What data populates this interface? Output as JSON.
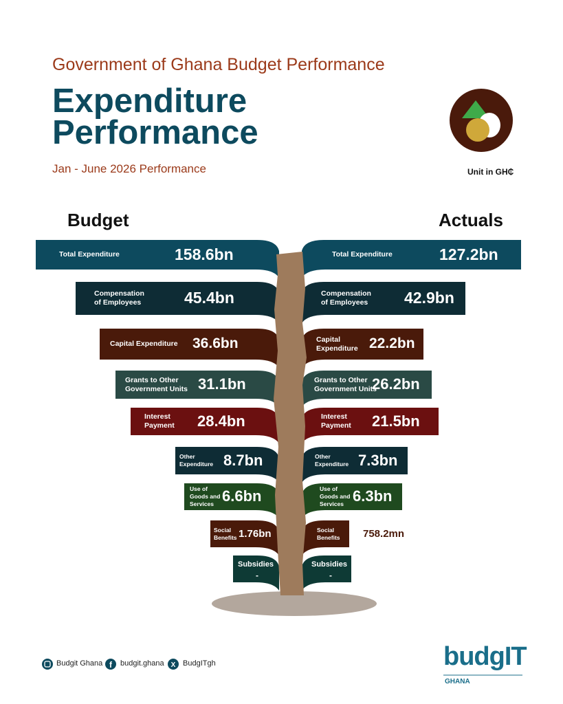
{
  "header": {
    "supertitle": "Government of Ghana Budget Performance",
    "title_lines": [
      "Expenditure",
      "Performance"
    ],
    "period": "Jan - June 2026 Performance",
    "unit": "Unit in GH₵"
  },
  "columns": {
    "left": "Budget",
    "right": "Actuals"
  },
  "rows": [
    {
      "budget": {
        "label": [
          "Total Expenditure"
        ],
        "value": "158.6bn"
      },
      "actual": {
        "label": [
          "Total Expenditure"
        ],
        "value": "127.2bn"
      }
    },
    {
      "budget": {
        "label": [
          "Compensation",
          "of Employees"
        ],
        "value": "45.4bn"
      },
      "actual": {
        "label": [
          "Compensation",
          "of Employees"
        ],
        "value": "42.9bn"
      }
    },
    {
      "budget": {
        "label": [
          "Capital Expenditure"
        ],
        "value": "36.6bn"
      },
      "actual": {
        "label": [
          "Capital",
          "Expenditure"
        ],
        "value": "22.2bn"
      }
    },
    {
      "budget": {
        "label": [
          "Grants to Other",
          "Government Units"
        ],
        "value": "31.1bn"
      },
      "actual": {
        "label": [
          "Grants to Other",
          "Government Units"
        ],
        "value": "26.2bn"
      }
    },
    {
      "budget": {
        "label": [
          "Interest",
          "Payment"
        ],
        "value": "28.4bn"
      },
      "actual": {
        "label": [
          "Interest",
          "Payment"
        ],
        "value": "21.5bn"
      }
    },
    {
      "budget": {
        "label": [
          "Other",
          "Expenditure"
        ],
        "value": "8.7bn"
      },
      "actual": {
        "label": [
          "Other",
          "Expenditure"
        ],
        "value": "7.3bn"
      }
    },
    {
      "budget": {
        "label": [
          "Use of",
          "Goods and",
          "Services"
        ],
        "value": "6.6bn"
      },
      "actual": {
        "label": [
          "Use of",
          "Goods and",
          "Services"
        ],
        "value": "6.3bn"
      }
    },
    {
      "budget": {
        "label": [
          "Social",
          "Benefits"
        ],
        "value": "1.76bn"
      },
      "actual": {
        "label": [
          "Social",
          "Benefits"
        ],
        "value": "758.2mn"
      }
    },
    {
      "budget": {
        "label": [
          "Subsidies"
        ],
        "value": "-"
      },
      "actual": {
        "label": [
          "Subsidies"
        ],
        "value": "-"
      }
    }
  ],
  "footer": {
    "social": [
      "Budgit Ghana",
      "budgit.ghana",
      "BudgITgh"
    ],
    "brand": "budgIT",
    "country": "GHANA"
  }
}
